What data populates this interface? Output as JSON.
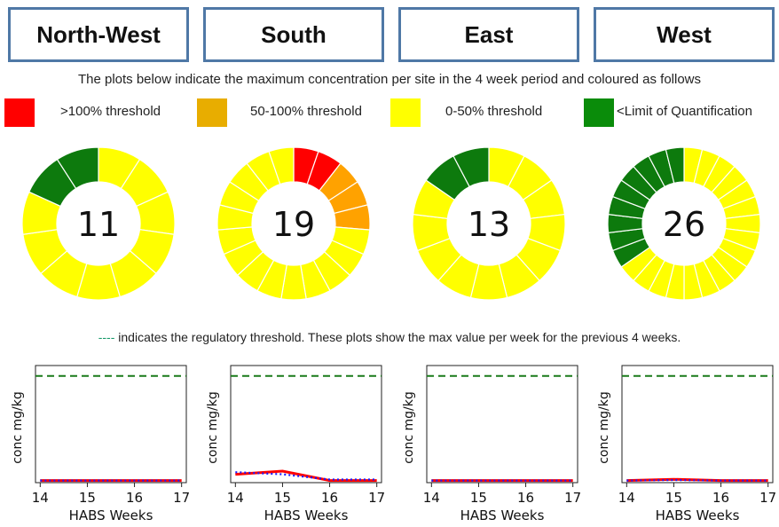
{
  "regions": [
    "North-West",
    "South",
    "East",
    "West"
  ],
  "description": "The plots below indicate the maximum concentration per site in the 4 week period and coloured as follows",
  "legend": [
    {
      "label": ">100% threshold",
      "color": "#ff0000"
    },
    {
      "label": "50-100% threshold",
      "color": "#e8ad00"
    },
    {
      "label": "0-50% threshold",
      "color": "#ffff00"
    },
    {
      "label": "<Limit of Quantification",
      "color": "#0a8c0a"
    }
  ],
  "threshold_note": {
    "dash": "----",
    "text": " indicates the regulatory threshold. These plots show the max value per week for the previous 4 weeks."
  },
  "colors": {
    "red": "#ff0000",
    "orange": "#ffa200",
    "yellow": "#ffff00",
    "green": "#0d7a0d",
    "border": "#4f78a6",
    "threshold_line": "#1a7a1a",
    "series_red": "#ff0000",
    "series_blue": "#1a1aff"
  },
  "chart_data": [
    {
      "type": "pie",
      "subtype": "donut",
      "region": "North-West",
      "center_label": "11",
      "slices": [
        {
          "category": "0-50% threshold",
          "count": 9,
          "color": "#ffff00"
        },
        {
          "category": "<Limit of Quantification",
          "count": 2,
          "color": "#0d7a0d"
        }
      ]
    },
    {
      "type": "pie",
      "subtype": "donut",
      "region": "South",
      "center_label": "19",
      "slices": [
        {
          "category": ">100% threshold",
          "count": 2,
          "color": "#ff0000"
        },
        {
          "category": "50-100% threshold",
          "count": 3,
          "color": "#ffa200"
        },
        {
          "category": "0-50% threshold",
          "count": 14,
          "color": "#ffff00"
        }
      ]
    },
    {
      "type": "pie",
      "subtype": "donut",
      "region": "East",
      "center_label": "13",
      "slices": [
        {
          "category": "0-50% threshold",
          "count": 11,
          "color": "#ffff00"
        },
        {
          "category": "<Limit of Quantification",
          "count": 2,
          "color": "#0d7a0d"
        }
      ]
    },
    {
      "type": "pie",
      "subtype": "donut",
      "region": "West",
      "center_label": "26",
      "slices": [
        {
          "category": "0-50% threshold",
          "count": 17,
          "color": "#ffff00"
        },
        {
          "category": "<Limit of Quantification",
          "count": 9,
          "color": "#0d7a0d"
        }
      ]
    },
    {
      "type": "line",
      "region": "North-West",
      "x": [
        14,
        15,
        16,
        17
      ],
      "xlabel": "HABS Weeks",
      "ylabel": "conc mg/kg",
      "threshold": 1.0,
      "ylim": [
        0,
        1.1
      ],
      "series": [
        {
          "style": "solid",
          "color": "#ff0000",
          "values": [
            0.0,
            0.0,
            0.0,
            0.0
          ]
        },
        {
          "style": "dotted",
          "color": "#1a1aff",
          "values": [
            0.0,
            0.0,
            0.0,
            0.0
          ]
        }
      ]
    },
    {
      "type": "line",
      "region": "South",
      "x": [
        14,
        15,
        16,
        17
      ],
      "xlabel": "HABS Weeks",
      "ylabel": "conc mg/kg",
      "threshold": 1.0,
      "ylim": [
        0,
        1.1
      ],
      "series": [
        {
          "style": "solid",
          "color": "#ff0000",
          "values": [
            0.06,
            0.09,
            0.0,
            0.0
          ]
        },
        {
          "style": "dotted",
          "color": "#1a1aff",
          "values": [
            0.08,
            0.06,
            0.01,
            0.01
          ]
        }
      ]
    },
    {
      "type": "line",
      "region": "East",
      "x": [
        14,
        15,
        16,
        17
      ],
      "xlabel": "HABS Weeks",
      "ylabel": "conc mg/kg",
      "threshold": 1.0,
      "ylim": [
        0,
        1.1
      ],
      "series": [
        {
          "style": "solid",
          "color": "#ff0000",
          "values": [
            0.0,
            0.0,
            0.0,
            0.0
          ]
        },
        {
          "style": "dotted",
          "color": "#1a1aff",
          "values": [
            0.0,
            0.0,
            0.0,
            0.0
          ]
        }
      ]
    },
    {
      "type": "line",
      "region": "West",
      "x": [
        14,
        15,
        16,
        17
      ],
      "xlabel": "HABS Weeks",
      "ylabel": "conc mg/kg",
      "threshold": 1.0,
      "ylim": [
        0,
        1.1
      ],
      "series": [
        {
          "style": "solid",
          "color": "#ff0000",
          "values": [
            0.0,
            0.012,
            0.0,
            0.0
          ]
        },
        {
          "style": "dotted",
          "color": "#1a1aff",
          "values": [
            0.0,
            0.005,
            0.0,
            0.0
          ]
        }
      ]
    }
  ]
}
